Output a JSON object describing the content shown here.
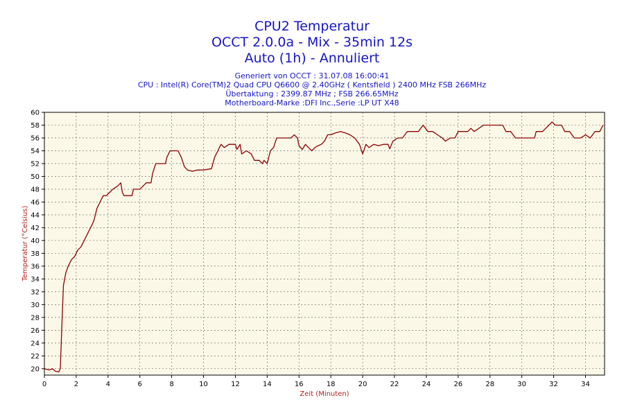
{
  "chart_data": {
    "type": "line",
    "title": [
      "CPU2 Temperatur",
      "OCCT 2.0.0a - Mix - 35min 12s",
      "Auto (1h) - Annuliert"
    ],
    "subtitle": [
      "Generiert von OCCT : 31.07.08 16:00:41",
      "CPU : Intel(R) Core(TM)2 Quad CPU Q6600 @ 2.40GHz ( Kentsfield ) 2400 MHz FSB 266MHz",
      "Übertaktung : 2399.87 MHz ; FSB 266.65MHz",
      "Motherboard-Marke :DFI Inc.,Serie :LP UT X48"
    ],
    "xlabel": "Zeit (Minuten)",
    "ylabel": "Temperatur (°Celsius)",
    "xlim": [
      0,
      35.2
    ],
    "ylim": [
      19,
      60
    ],
    "xticks": [
      0,
      2,
      4,
      6,
      8,
      10,
      12,
      14,
      16,
      18,
      20,
      22,
      24,
      26,
      28,
      30,
      32,
      34
    ],
    "yticks": [
      20,
      22,
      24,
      26,
      28,
      30,
      32,
      34,
      36,
      38,
      40,
      42,
      44,
      46,
      48,
      50,
      52,
      54,
      56,
      58,
      60
    ],
    "grid": true,
    "colors": {
      "line": "#8b0000",
      "plot_bg": "#fcf8e8",
      "text": "#1515c8",
      "axis_label": "#b02020",
      "grid": "#555555"
    },
    "series": [
      {
        "points": [
          [
            0,
            20
          ],
          [
            0.3,
            19.8
          ],
          [
            0.5,
            20
          ],
          [
            0.7,
            19.6
          ],
          [
            0.9,
            19.5
          ],
          [
            1.0,
            20
          ],
          [
            1.1,
            27
          ],
          [
            1.2,
            33
          ],
          [
            1.35,
            35
          ],
          [
            1.5,
            36
          ],
          [
            1.7,
            37
          ],
          [
            1.9,
            37.5
          ],
          [
            2.1,
            38.5
          ],
          [
            2.3,
            39
          ],
          [
            2.5,
            40
          ],
          [
            2.7,
            41
          ],
          [
            2.9,
            42
          ],
          [
            3.1,
            43
          ],
          [
            3.3,
            45
          ],
          [
            3.5,
            46
          ],
          [
            3.7,
            47
          ],
          [
            3.9,
            47
          ],
          [
            4.1,
            47.5
          ],
          [
            4.3,
            48
          ],
          [
            4.6,
            48.5
          ],
          [
            4.8,
            49
          ],
          [
            4.9,
            47.5
          ],
          [
            5.0,
            47
          ],
          [
            5.5,
            47
          ],
          [
            5.6,
            48
          ],
          [
            6.0,
            48
          ],
          [
            6.2,
            48.5
          ],
          [
            6.4,
            49
          ],
          [
            6.7,
            49
          ],
          [
            6.8,
            50.5
          ],
          [
            7.0,
            52
          ],
          [
            7.6,
            52
          ],
          [
            7.7,
            53
          ],
          [
            7.9,
            54
          ],
          [
            8.4,
            54
          ],
          [
            8.6,
            53
          ],
          [
            8.8,
            51.5
          ],
          [
            9.0,
            51
          ],
          [
            9.3,
            50.8
          ],
          [
            9.6,
            51
          ],
          [
            10.0,
            51
          ],
          [
            10.5,
            51.2
          ],
          [
            10.7,
            53
          ],
          [
            10.9,
            54
          ],
          [
            11.1,
            55
          ],
          [
            11.3,
            54.5
          ],
          [
            11.6,
            55
          ],
          [
            12.0,
            55
          ],
          [
            12.1,
            54.2
          ],
          [
            12.3,
            55
          ],
          [
            12.4,
            53.5
          ],
          [
            12.7,
            54
          ],
          [
            13.0,
            53.5
          ],
          [
            13.2,
            52.5
          ],
          [
            13.5,
            52.5
          ],
          [
            13.7,
            52
          ],
          [
            13.8,
            52.5
          ],
          [
            14.0,
            52
          ],
          [
            14.2,
            54
          ],
          [
            14.4,
            54.5
          ],
          [
            14.6,
            56
          ],
          [
            15.0,
            56
          ],
          [
            15.5,
            56
          ],
          [
            15.7,
            56.5
          ],
          [
            15.9,
            56
          ],
          [
            16.0,
            54.8
          ],
          [
            16.2,
            54.2
          ],
          [
            16.4,
            55
          ],
          [
            16.6,
            54.5
          ],
          [
            16.8,
            54
          ],
          [
            17.0,
            54.5
          ],
          [
            17.2,
            54.8
          ],
          [
            17.4,
            55
          ],
          [
            17.6,
            55.5
          ],
          [
            17.8,
            56.5
          ],
          [
            18.0,
            56.5
          ],
          [
            18.3,
            56.8
          ],
          [
            18.6,
            57
          ],
          [
            18.9,
            56.8
          ],
          [
            19.2,
            56.5
          ],
          [
            19.5,
            56
          ],
          [
            19.8,
            55
          ],
          [
            20.0,
            53.5
          ],
          [
            20.2,
            55
          ],
          [
            20.4,
            54.5
          ],
          [
            20.7,
            55
          ],
          [
            21.0,
            54.8
          ],
          [
            21.3,
            55
          ],
          [
            21.6,
            55
          ],
          [
            21.7,
            54.3
          ],
          [
            21.9,
            55.5
          ],
          [
            22.2,
            56
          ],
          [
            22.5,
            56
          ],
          [
            22.8,
            57
          ],
          [
            23.2,
            57
          ],
          [
            23.5,
            57
          ],
          [
            23.8,
            58
          ],
          [
            24.1,
            57
          ],
          [
            24.4,
            57
          ],
          [
            24.7,
            56.5
          ],
          [
            25.0,
            56
          ],
          [
            25.2,
            55.5
          ],
          [
            25.5,
            56
          ],
          [
            25.8,
            56
          ],
          [
            26.0,
            57
          ],
          [
            26.3,
            57
          ],
          [
            26.6,
            57
          ],
          [
            26.8,
            57.5
          ],
          [
            27.0,
            57
          ],
          [
            27.3,
            57.5
          ],
          [
            27.6,
            58
          ],
          [
            28.0,
            58
          ],
          [
            28.5,
            58
          ],
          [
            28.8,
            58
          ],
          [
            29.0,
            57
          ],
          [
            29.3,
            57
          ],
          [
            29.6,
            56
          ],
          [
            30.2,
            56
          ],
          [
            30.8,
            56
          ],
          [
            30.9,
            57
          ],
          [
            31.3,
            57
          ],
          [
            31.5,
            57.5
          ],
          [
            31.7,
            58
          ],
          [
            31.9,
            58.5
          ],
          [
            32.1,
            58
          ],
          [
            32.5,
            58
          ],
          [
            32.7,
            57
          ],
          [
            33.0,
            57
          ],
          [
            33.3,
            56
          ],
          [
            33.7,
            56
          ],
          [
            34.0,
            56.5
          ],
          [
            34.3,
            56
          ],
          [
            34.6,
            57
          ],
          [
            34.9,
            57
          ],
          [
            35.1,
            58
          ]
        ]
      }
    ]
  }
}
